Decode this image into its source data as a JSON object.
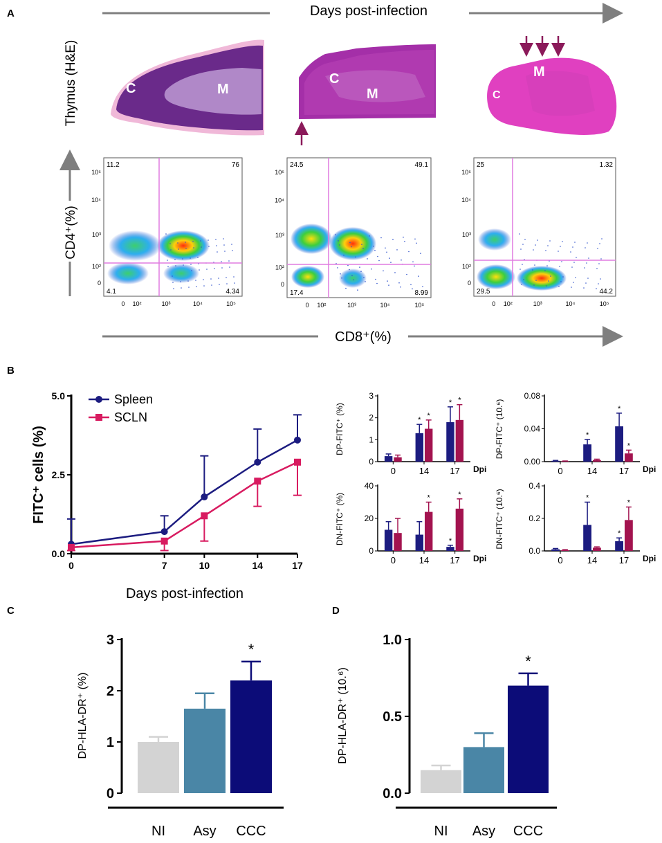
{
  "panel_labels": {
    "a": "A",
    "b": "B",
    "c": "C",
    "d": "D"
  },
  "panel_a": {
    "top_arrow_label": "Days post-infection",
    "bottom_arrow_label": "CD8⁺(%)",
    "histology_row_label": "Thymus (H&E)",
    "flow_row_label": "CD4⁺(%)",
    "region_cortex": "C",
    "region_medulla": "M",
    "flow_y_ticks": [
      "10⁵",
      "10⁴",
      "10³",
      "10²",
      "0"
    ],
    "flow_x_ticks": [
      "0",
      "10²",
      "10³",
      "10⁴",
      "10⁵"
    ],
    "flow_plots": [
      {
        "ul": "11.2",
        "ur": "76",
        "ll": "4.1",
        "lr": "4.34"
      },
      {
        "ul": "24.5",
        "ur": "49.1",
        "ll": "17.4",
        "lr": "8.99"
      },
      {
        "ul": "25",
        "ur": "1.32",
        "ll": "29.5",
        "lr": "44.2"
      }
    ],
    "colors": {
      "histology": "#7a2a9a",
      "arrow": "#8b1a5a",
      "gate": "#e07be0",
      "axis_arrow": "#7f7f7f"
    }
  },
  "chart_data": [
    {
      "id": "B-line",
      "type": "line",
      "title": "",
      "xlabel": "Days post-infection",
      "ylabel": "FITC⁺ cells (%)",
      "x": [
        0,
        7,
        10,
        14,
        17
      ],
      "x_tick_labels": [
        "0",
        "7",
        "10",
        "14",
        "17"
      ],
      "ylim": [
        0,
        5
      ],
      "y_ticks": [
        0,
        2.5,
        5
      ],
      "y_tick_labels": [
        "0.0",
        "2.5",
        "5.0"
      ],
      "series": [
        {
          "name": "Spleen",
          "color": "#1c1c80",
          "marker": "circle",
          "values": [
            0.3,
            0.7,
            1.8,
            2.9,
            3.6
          ],
          "err": [
            0.8,
            0.5,
            1.3,
            1.05,
            0.8
          ]
        },
        {
          "name": "SCLN",
          "color": "#d81b60",
          "marker": "square",
          "values": [
            0.2,
            0.4,
            1.2,
            2.3,
            2.9
          ],
          "err": [
            0.1,
            0.3,
            0.8,
            0.8,
            1.05
          ]
        }
      ]
    },
    {
      "id": "B-dp-pct",
      "type": "bar",
      "ylabel": "DP-FITC⁺ (%)",
      "categories": [
        "0",
        "14",
        "17"
      ],
      "x_unit": "Dpi",
      "ylim": [
        0,
        3
      ],
      "y_ticks": [
        0,
        1,
        2,
        3
      ],
      "y_tick_labels": [
        "0",
        "1",
        "2",
        "3"
      ],
      "series": [
        {
          "name": "Spleen",
          "color": "#1c1c80",
          "values": [
            0.25,
            1.3,
            1.8
          ],
          "err": [
            0.1,
            0.4,
            0.7
          ],
          "sig": [
            "",
            "*",
            "*"
          ]
        },
        {
          "name": "SCLN",
          "color": "#a3134f",
          "values": [
            0.2,
            1.5,
            1.9
          ],
          "err": [
            0.1,
            0.4,
            0.7
          ],
          "sig": [
            "",
            "*",
            "*"
          ]
        }
      ]
    },
    {
      "id": "B-dp-abs",
      "type": "bar",
      "ylabel": "DP-FITC⁺ (10.⁶)",
      "categories": [
        "0",
        "14",
        "17"
      ],
      "x_unit": "Dpi",
      "ylim": [
        0,
        0.08
      ],
      "y_ticks": [
        0,
        0.04,
        0.08
      ],
      "y_tick_labels": [
        "0.00",
        "0.04",
        "0.08"
      ],
      "series": [
        {
          "name": "Spleen",
          "color": "#1c1c80",
          "values": [
            0.001,
            0.021,
            0.043
          ],
          "err": [
            0.0005,
            0.006,
            0.016
          ],
          "sig": [
            "",
            "*",
            "*"
          ]
        },
        {
          "name": "SCLN",
          "color": "#a3134f",
          "values": [
            0.0005,
            0.002,
            0.01
          ],
          "err": [
            0.0003,
            0.001,
            0.004
          ],
          "sig": [
            "",
            "",
            "*"
          ]
        }
      ]
    },
    {
      "id": "B-dn-pct",
      "type": "bar",
      "ylabel": "DN-FITC⁺ (%)",
      "categories": [
        "0",
        "14",
        "17"
      ],
      "x_unit": "Dpi",
      "ylim": [
        0,
        40
      ],
      "y_ticks": [
        0,
        20,
        40
      ],
      "y_tick_labels": [
        "0",
        "20",
        "40"
      ],
      "series": [
        {
          "name": "Spleen",
          "color": "#1c1c80",
          "values": [
            13,
            10,
            2.5
          ],
          "err": [
            5,
            8,
            1
          ],
          "sig": [
            "",
            "",
            "*"
          ]
        },
        {
          "name": "SCLN",
          "color": "#a3134f",
          "values": [
            11,
            24,
            26
          ],
          "err": [
            9,
            6,
            6
          ],
          "sig": [
            "",
            "*",
            "*"
          ]
        }
      ]
    },
    {
      "id": "B-dn-abs",
      "type": "bar",
      "ylabel": "DN-FITC⁺ (10.⁶)",
      "categories": [
        "0",
        "14",
        "17"
      ],
      "x_unit": "Dpi",
      "ylim": [
        0,
        0.4
      ],
      "y_ticks": [
        0,
        0.2,
        0.4
      ],
      "y_tick_labels": [
        "0.0",
        "0.2",
        "0.4"
      ],
      "series": [
        {
          "name": "Spleen",
          "color": "#1c1c80",
          "values": [
            0.01,
            0.16,
            0.06
          ],
          "err": [
            0.005,
            0.14,
            0.02
          ],
          "sig": [
            "",
            "*",
            "*"
          ]
        },
        {
          "name": "SCLN",
          "color": "#a3134f",
          "values": [
            0.005,
            0.02,
            0.19
          ],
          "err": [
            0.003,
            0.005,
            0.08
          ],
          "sig": [
            "",
            "",
            "*"
          ]
        }
      ]
    },
    {
      "id": "C",
      "type": "bar",
      "ylabel": "DP-HLA-DR⁺ (%)",
      "categories": [
        "NI",
        "Asy",
        "CCC"
      ],
      "ylim": [
        0,
        3
      ],
      "y_ticks": [
        0,
        1,
        2,
        3
      ],
      "y_tick_labels": [
        "0",
        "1",
        "2",
        "3"
      ],
      "values": [
        1.0,
        1.65,
        2.2
      ],
      "err": [
        0.1,
        0.3,
        0.37
      ],
      "sig": [
        "",
        "",
        "*"
      ],
      "colors": [
        "#d3d3d3",
        "#4a86a6",
        "#0c0c78"
      ]
    },
    {
      "id": "D",
      "type": "bar",
      "ylabel": "DP-HLA-DR⁺ (10.⁶)",
      "categories": [
        "NI",
        "Asy",
        "CCC"
      ],
      "ylim": [
        0,
        1.0
      ],
      "y_ticks": [
        0,
        0.5,
        1.0
      ],
      "y_tick_labels": [
        "0.0",
        "0.5",
        "1.0"
      ],
      "values": [
        0.15,
        0.3,
        0.7
      ],
      "err": [
        0.03,
        0.09,
        0.08
      ],
      "sig": [
        "",
        "",
        "*"
      ],
      "colors": [
        "#d3d3d3",
        "#4a86a6",
        "#0c0c78"
      ]
    }
  ]
}
